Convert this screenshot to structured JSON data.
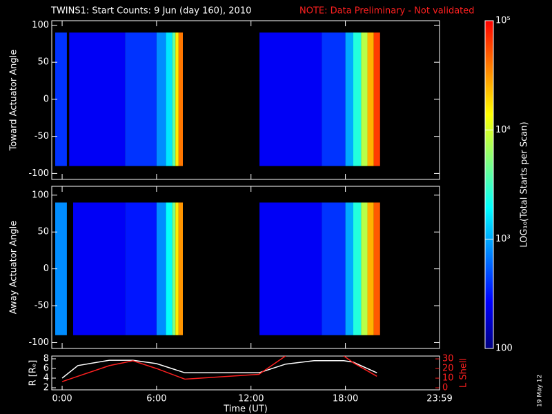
{
  "title": "TWINS1: Start Counts:  9 Jun (day 160), 2010",
  "note": "NOTE: Data Preliminary - Not validated",
  "signature": "19 May 12",
  "chart_data": [
    {
      "type": "heatmap",
      "y_label": "Toward Actuator Angle",
      "xlim": [
        -0.66,
        23.98
      ],
      "ylim": [
        -108,
        106
      ],
      "yticks": [
        -100,
        -50,
        0,
        50,
        100
      ],
      "xticks": [
        0,
        6,
        12,
        18
      ],
      "angle_range": [
        -90,
        90
      ],
      "x_edges": [
        -0.44,
        0.3,
        0.45,
        4.0,
        6.0,
        6.6,
        7.0,
        7.2,
        7.4,
        7.67,
        12.54,
        16.5,
        18.0,
        18.5,
        19.0,
        19.4,
        19.8,
        20.2
      ],
      "values": [
        2.6,
        null,
        2.4,
        2.6,
        2.9,
        3.2,
        3.6,
        4.2,
        4.6,
        null,
        2.4,
        2.6,
        3.0,
        3.4,
        3.9,
        4.4,
        4.8
      ]
    },
    {
      "type": "heatmap",
      "y_label": "Away Actuator Angle",
      "xlim": [
        -0.66,
        23.98
      ],
      "ylim": [
        -108,
        112
      ],
      "yticks": [
        -100,
        -50,
        0,
        50,
        100
      ],
      "xticks": [
        0,
        6,
        12,
        18
      ],
      "angle_range": [
        -90,
        90
      ],
      "x_edges": [
        -0.44,
        0.3,
        0.7,
        4.0,
        6.0,
        6.6,
        7.0,
        7.2,
        7.4,
        7.67,
        12.54,
        16.5,
        18.0,
        18.5,
        19.0,
        19.4,
        19.8,
        20.2
      ],
      "values": [
        2.9,
        null,
        2.4,
        2.5,
        2.9,
        3.3,
        3.7,
        4.2,
        4.5,
        null,
        2.4,
        2.6,
        3.0,
        3.4,
        3.9,
        4.4,
        4.7
      ]
    },
    {
      "type": "line",
      "x_label": "Time (UT)",
      "y_label": "R [Rₑ]",
      "y2_label": "L Shell",
      "xlim": [
        -0.66,
        23.98
      ],
      "xticks": [
        {
          "value": 0,
          "label": "0:00"
        },
        {
          "value": 6,
          "label": "6:00"
        },
        {
          "value": 12,
          "label": "12:00"
        },
        {
          "value": 18,
          "label": "18:00"
        },
        {
          "value": 23.98,
          "label": "23:59"
        }
      ],
      "ylim": [
        1.57,
        8.57
      ],
      "yticks": [
        2,
        4,
        6,
        8
      ],
      "y2lim": [
        -2.1,
        32.9
      ],
      "y2ticks": [
        0,
        10,
        20,
        30
      ],
      "x": [
        0,
        1,
        3,
        4.5,
        6,
        7.8,
        12.5,
        14.2,
        16,
        17.9,
        18.5,
        20
      ],
      "series": [
        {
          "color": "#ffffff",
          "values": [
            4,
            6.6,
            7.7,
            7.7,
            7,
            5.1,
            5.1,
            6.9,
            7.6,
            7.6,
            7.3,
            5.1
          ]
        },
        {
          "color": "#ff2020",
          "axis": "y2",
          "values": [
            6.4,
            12,
            23,
            28,
            20,
            9,
            14,
            33,
            null,
            33,
            26,
            12
          ]
        }
      ]
    },
    {
      "type": "colorbar",
      "label": "LOG₁₀(Total Starts per Scan)",
      "clim": [
        2,
        5
      ],
      "colorscale": [
        "#00007f",
        "#0000ff",
        "#0080ff",
        "#00ffff",
        "#80ff80",
        "#ffff00",
        "#ff8000",
        "#ff0000"
      ],
      "ticks": [
        {
          "value": 2,
          "label": "100"
        },
        {
          "value": 3,
          "label": "10³"
        },
        {
          "value": 4,
          "label": "10⁴"
        },
        {
          "value": 5,
          "label": "10⁵"
        }
      ]
    }
  ]
}
